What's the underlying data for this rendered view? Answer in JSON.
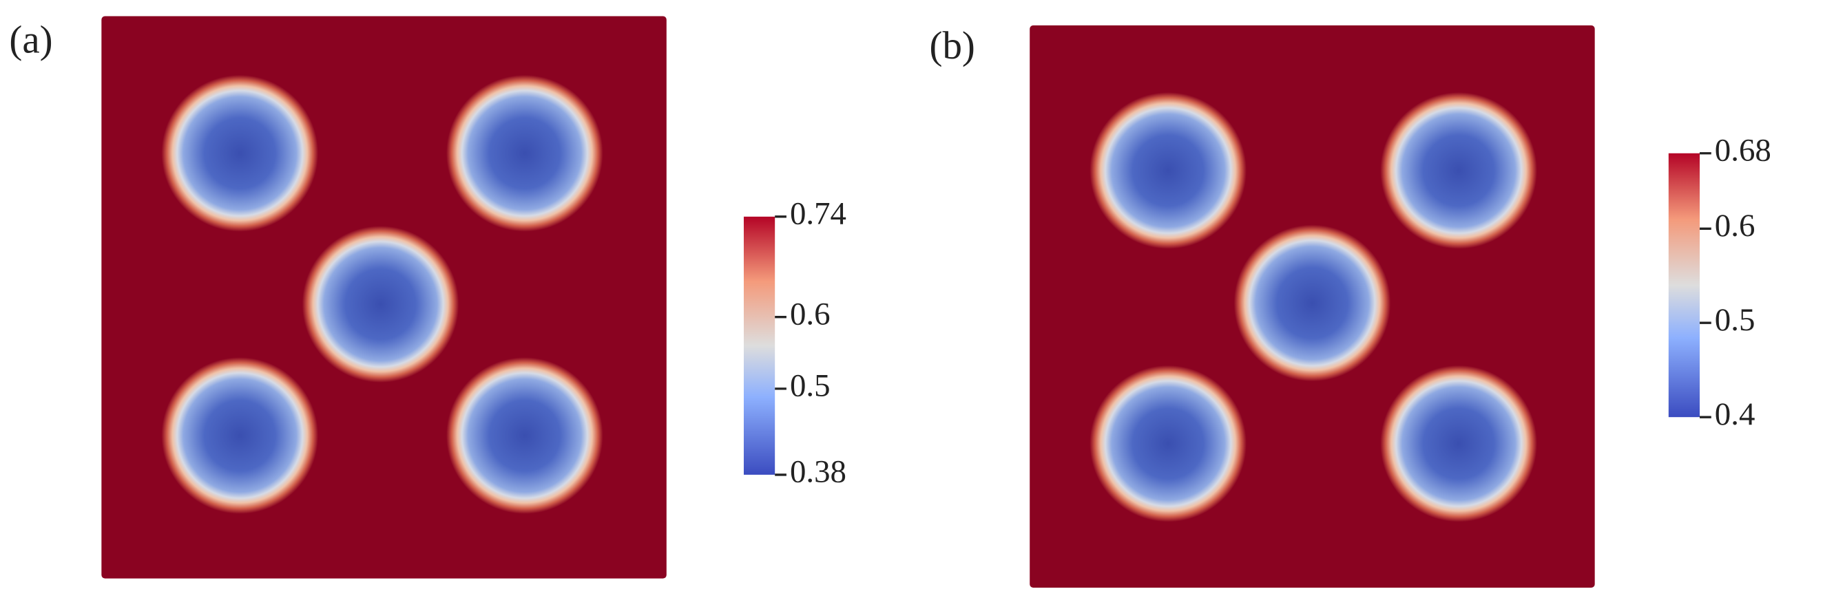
{
  "panels": [
    {
      "label": "(a)",
      "colorbar": {
        "range": [
          0.38,
          0.74
        ],
        "ticks": [
          0.74,
          0.6,
          0.5,
          0.38
        ]
      }
    },
    {
      "label": "(b)",
      "colorbar": {
        "range": [
          0.4,
          0.68
        ],
        "ticks": [
          0.68,
          0.6,
          0.5,
          0.4
        ]
      }
    }
  ]
}
